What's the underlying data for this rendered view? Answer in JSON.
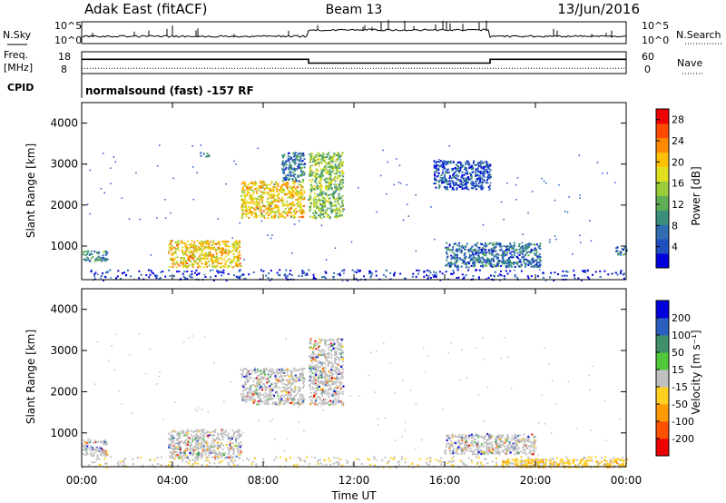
{
  "header": {
    "station": "Adak East (fitACF)",
    "beam": "Beam 13",
    "date": "13/Jun/2016"
  },
  "panels": {
    "noise": {
      "left_label": "N.Sky",
      "right_label": "N.Search",
      "left_ticks": [
        "10^5",
        "10^0"
      ],
      "right_ticks": [
        "10^5",
        "10^0"
      ]
    },
    "freq": {
      "left_label_1": "Freq.",
      "left_label_2": "[MHz]",
      "right_label": "Nave",
      "left_ticks": [
        "18",
        "8"
      ],
      "right_ticks": [
        "60",
        "0"
      ],
      "freq_mhz": [
        {
          "from": "00:00",
          "to": "10:00",
          "value": 15.2
        },
        {
          "from": "10:00",
          "to": "18:00",
          "value": 13.0
        },
        {
          "from": "18:00",
          "to": "24:00",
          "value": 15.2
        }
      ],
      "nave": 12
    },
    "cpid": {
      "label": "CPID",
      "program": "normalsound (fast) -157 RF"
    }
  },
  "chart_data": [
    {
      "type": "heatmap",
      "name": "power",
      "xlabel": "",
      "ylabel": "Slant Range [km]",
      "x_ticks": [
        "00:00",
        "04:00",
        "08:00",
        "12:00",
        "16:00",
        "20:00",
        "00:00"
      ],
      "y_ticks": [
        "1000",
        "2000",
        "3000",
        "4000"
      ],
      "xlim_hours": [
        0,
        24
      ],
      "ylim_km": [
        180,
        4500
      ],
      "colorbar": {
        "label": "Power [dB]",
        "ticks": [
          "4",
          "8",
          "12",
          "16",
          "20",
          "24",
          "28"
        ],
        "range": [
          0,
          30
        ],
        "colors": [
          "#0000dd",
          "#2050c0",
          "#2f6db0",
          "#3b8f7a",
          "#5fae55",
          "#9ccc3a",
          "#e0e020",
          "#ffc000",
          "#ff8a00",
          "#ff4a00",
          "#ee0000"
        ]
      },
      "regions": [
        {
          "t0": 0.0,
          "t1": 1.1,
          "r0": 650,
          "r1": 900,
          "value": 8
        },
        {
          "t0": 3.8,
          "t1": 7.0,
          "r0": 500,
          "r1": 1150,
          "value": 20
        },
        {
          "t0": 5.2,
          "t1": 5.6,
          "r0": 3200,
          "r1": 3300,
          "value": 6
        },
        {
          "t0": 7.0,
          "t1": 9.8,
          "r0": 1700,
          "r1": 2600,
          "value": 20
        },
        {
          "t0": 8.8,
          "t1": 9.8,
          "r0": 2600,
          "r1": 3300,
          "value": 6
        },
        {
          "t0": 10.0,
          "t1": 11.5,
          "r0": 1700,
          "r1": 3300,
          "value": 14
        },
        {
          "t0": 15.5,
          "t1": 18.0,
          "r0": 2400,
          "r1": 3100,
          "value": 4
        },
        {
          "t0": 16.0,
          "t1": 20.2,
          "r0": 500,
          "r1": 1100,
          "value": 6
        },
        {
          "t0": 23.5,
          "t1": 24.0,
          "r0": 800,
          "r1": 1000,
          "value": 6
        }
      ]
    },
    {
      "type": "heatmap",
      "name": "velocity",
      "xlabel": "Time UT",
      "ylabel": "Slant Range [km]",
      "x_ticks": [
        "00:00",
        "04:00",
        "08:00",
        "12:00",
        "16:00",
        "20:00",
        "00:00"
      ],
      "y_ticks": [
        "1000",
        "2000",
        "3000",
        "4000"
      ],
      "xlim_hours": [
        0,
        24
      ],
      "ylim_km": [
        180,
        4500
      ],
      "colorbar": {
        "label": "Velocity [m s⁻¹]",
        "ticks": [
          "200",
          "100",
          "50",
          "15",
          "-15",
          "-50",
          "-100",
          "-200"
        ],
        "colors": [
          "#0000dd",
          "#2a5fc0",
          "#3f8f6a",
          "#4fc83a",
          "#c0c0c0",
          "#ffd020",
          "#ff9a00",
          "#ff5000",
          "#ee0000"
        ]
      },
      "regions": [
        {
          "t0": 0.0,
          "t1": 1.1,
          "r0": 450,
          "r1": 850,
          "value": 0
        },
        {
          "t0": 3.8,
          "t1": 7.0,
          "r0": 400,
          "r1": 1100,
          "value": 0
        },
        {
          "t0": 7.0,
          "t1": 9.8,
          "r0": 1700,
          "r1": 2600,
          "value": 0
        },
        {
          "t0": 10.0,
          "t1": 11.5,
          "r0": 1700,
          "r1": 3300,
          "value": 0
        },
        {
          "t0": 16.0,
          "t1": 20.0,
          "r0": 500,
          "r1": 1000,
          "value": 0
        },
        {
          "t0": 18.5,
          "t1": 24.0,
          "r0": 180,
          "r1": 380,
          "value": -30
        }
      ]
    }
  ]
}
